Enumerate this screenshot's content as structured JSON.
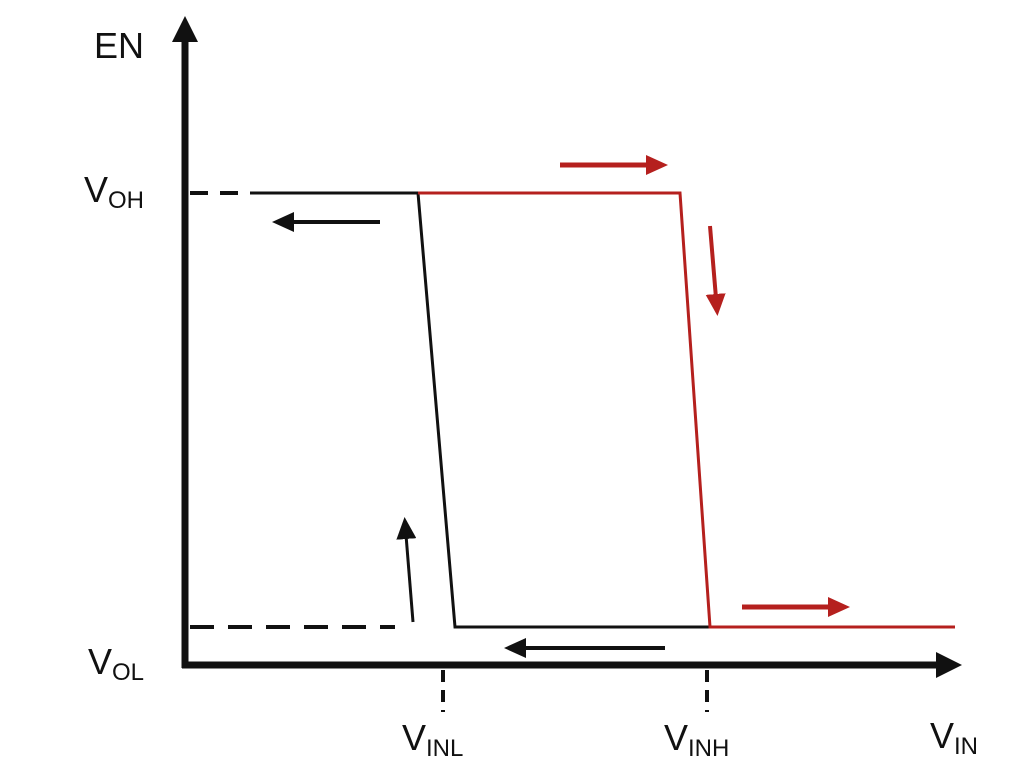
{
  "diagram": {
    "y_axis_label": "EN",
    "x_axis_label": {
      "main": "V",
      "sub": "IN"
    },
    "levels": [
      {
        "main": "V",
        "sub": "OH"
      },
      {
        "main": "V",
        "sub": "OL"
      }
    ],
    "thresholds": [
      {
        "main": "V",
        "sub": "INL"
      },
      {
        "main": "V",
        "sub": "INH"
      }
    ]
  }
}
